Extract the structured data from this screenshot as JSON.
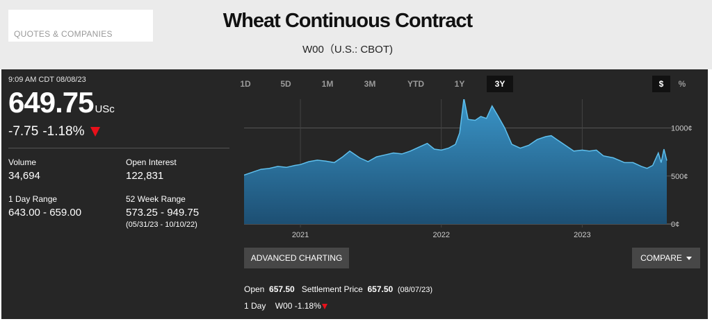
{
  "header": {
    "search_label": "QUOTES & COMPANIES",
    "title": "Wheat Continuous Contract",
    "subtitle": "W00（U.S.: CBOT)"
  },
  "quote": {
    "timestamp": "9:09 AM CDT 08/08/23",
    "price": "649.75",
    "unit": "USc",
    "change": "-7.75",
    "change_pct": "-1.18%",
    "direction": "down"
  },
  "stats": {
    "volume_label": "Volume",
    "volume": "34,694",
    "open_interest_label": "Open Interest",
    "open_interest": "122,831",
    "day_range_label": "1 Day Range",
    "day_range": "643.00 - 659.00",
    "week52_label": "52 Week Range",
    "week52": "573.25 - 949.75",
    "week52_dates": "(05/31/23 - 10/10/22)"
  },
  "tabs": [
    "1D",
    "5D",
    "1M",
    "3M",
    "YTD",
    "1Y",
    "3Y"
  ],
  "active_tab": "3Y",
  "unit_toggle": {
    "dollar": "$",
    "percent": "%",
    "active": "$"
  },
  "buttons": {
    "advanced": "ADVANCED CHARTING",
    "compare": "COMPARE"
  },
  "footer": {
    "open_label": "Open",
    "open": "657.50",
    "settle_label": "Settlement Price",
    "settle": "657.50",
    "settle_date": "(08/07/23)",
    "day_label": "1 Day",
    "symbol_change": "W00 -1.18%"
  },
  "colors": {
    "accent_down": "#e8101a",
    "area_fill_top": "#3a95c8",
    "area_fill_bottom": "#1e5b82",
    "line": "#5fc0ee"
  },
  "chart_data": {
    "type": "area",
    "x_ticks": [
      "2021",
      "2022",
      "2023"
    ],
    "y_ticks": [
      "1000¢",
      "500¢",
      "0¢"
    ],
    "ylim": [
      0,
      1300
    ],
    "grid": true,
    "series": [
      {
        "values": [
          [
            2020.6,
            510
          ],
          [
            2020.66,
            540
          ],
          [
            2020.72,
            570
          ],
          [
            2020.78,
            580
          ],
          [
            2020.84,
            600
          ],
          [
            2020.9,
            590
          ],
          [
            2020.96,
            610
          ],
          [
            2021.0,
            620
          ],
          [
            2021.06,
            650
          ],
          [
            2021.12,
            665
          ],
          [
            2021.18,
            655
          ],
          [
            2021.24,
            640
          ],
          [
            2021.3,
            700
          ],
          [
            2021.35,
            760
          ],
          [
            2021.42,
            690
          ],
          [
            2021.48,
            650
          ],
          [
            2021.54,
            700
          ],
          [
            2021.6,
            720
          ],
          [
            2021.66,
            740
          ],
          [
            2021.72,
            730
          ],
          [
            2021.78,
            760
          ],
          [
            2021.84,
            800
          ],
          [
            2021.9,
            840
          ],
          [
            2021.95,
            780
          ],
          [
            2022.0,
            770
          ],
          [
            2022.05,
            790
          ],
          [
            2022.1,
            830
          ],
          [
            2022.13,
            950
          ],
          [
            2022.16,
            1310
          ],
          [
            2022.19,
            1090
          ],
          [
            2022.24,
            1080
          ],
          [
            2022.28,
            1120
          ],
          [
            2022.32,
            1100
          ],
          [
            2022.36,
            1230
          ],
          [
            2022.4,
            1130
          ],
          [
            2022.45,
            1000
          ],
          [
            2022.5,
            830
          ],
          [
            2022.56,
            790
          ],
          [
            2022.62,
            820
          ],
          [
            2022.68,
            880
          ],
          [
            2022.74,
            910
          ],
          [
            2022.78,
            920
          ],
          [
            2022.82,
            880
          ],
          [
            2022.88,
            820
          ],
          [
            2022.94,
            760
          ],
          [
            2023.0,
            770
          ],
          [
            2023.05,
            760
          ],
          [
            2023.1,
            770
          ],
          [
            2023.15,
            710
          ],
          [
            2023.22,
            690
          ],
          [
            2023.3,
            640
          ],
          [
            2023.36,
            640
          ],
          [
            2023.42,
            600
          ],
          [
            2023.46,
            580
          ],
          [
            2023.5,
            610
          ],
          [
            2023.54,
            740
          ],
          [
            2023.56,
            640
          ],
          [
            2023.58,
            780
          ],
          [
            2023.6,
            660
          ]
        ]
      }
    ]
  }
}
